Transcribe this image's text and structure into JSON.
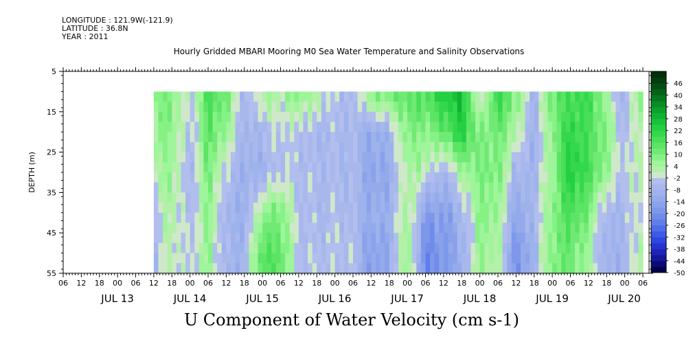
{
  "header": {
    "longitude": "LONGITUDE : 121.9W(-121.9)",
    "latitude": "LATITUDE : 36.8N",
    "year": "YEAR : 2011"
  },
  "title": "Hourly Gridded MBARI Mooring M0 Sea Water Temperature and Salinity Observations",
  "variable_title": "U Component of Water Velocity (cm s-1)",
  "chart_data": {
    "type": "heatmap",
    "ylabel": "DEPTH (m)",
    "y_ticks": [
      5,
      15,
      25,
      35,
      45,
      55
    ],
    "ylim": [
      55,
      5
    ],
    "y_direction": "depth increases downward",
    "x_hour_ticks": [
      "06",
      "12",
      "18",
      "00",
      "06",
      "12",
      "18",
      "00",
      "06",
      "12",
      "18",
      "00",
      "06",
      "12",
      "18",
      "00",
      "06",
      "12",
      "18",
      "00",
      "06",
      "12",
      "18",
      "00",
      "06",
      "12",
      "18",
      "00",
      "06",
      "12",
      "18",
      "00",
      "06"
    ],
    "x_date_labels": [
      {
        "label": "JUL 13",
        "hours_after_jul13_00": 0
      },
      {
        "label": "JUL 14",
        "hours_after_jul13_00": 24
      },
      {
        "label": "JUL 15",
        "hours_after_jul13_00": 48
      },
      {
        "label": "JUL 16",
        "hours_after_jul13_00": 72
      },
      {
        "label": "JUL 17",
        "hours_after_jul13_00": 96
      },
      {
        "label": "JUL 18",
        "hours_after_jul13_00": 120
      },
      {
        "label": "JUL 19",
        "hours_after_jul13_00": 144
      },
      {
        "label": "JUL 20",
        "hours_after_jul13_00": 168
      }
    ],
    "colorbar": {
      "labels": [
        46,
        40,
        34,
        28,
        22,
        16,
        10,
        4,
        -2,
        -8,
        -14,
        -20,
        -26,
        -32,
        -38,
        -44,
        -50
      ],
      "min": -50,
      "max": 52,
      "step": 3,
      "colors_low_to_high": [
        "#00004a",
        "#0a0a78",
        "#15169a",
        "#1f24b8",
        "#2635cf",
        "#2f47e0",
        "#3d5ae6",
        "#4e6de9",
        "#5f7eea",
        "#6f8cea",
        "#7d98ea",
        "#89a2eb",
        "#94aaeb",
        "#9eb2ec",
        "#a8b8ed",
        "#b1beee",
        "#cfe8c9",
        "#b3f0a8",
        "#9ef59a",
        "#86f286",
        "#70ea74",
        "#5ce465",
        "#48de58",
        "#34d84c",
        "#24cf42",
        "#18c23a",
        "#10b232",
        "#0ca02c",
        "#088c26",
        "#06781f",
        "#046318",
        "#034f12",
        "#023e0d",
        "#022e09"
      ]
    },
    "data_extent": {
      "depth_top": 10,
      "depth_bottom": 55
    },
    "time_columns_u_cm_s": {
      "description": "approximate U velocity profile at depths [10,20,30,40,50] m, sampled every 6 hours",
      "samples": [
        {
          "time": "JUL 13 12",
          "u": [
            8,
            6,
            2,
            -3,
            -6
          ]
        },
        {
          "time": "JUL 13 18",
          "u": [
            10,
            8,
            6,
            4,
            2
          ]
        },
        {
          "time": "JUL 14 00",
          "u": [
            -4,
            -6,
            -8,
            -6,
            -4
          ]
        },
        {
          "time": "JUL 14 06",
          "u": [
            18,
            14,
            10,
            8,
            6
          ]
        },
        {
          "time": "JUL 14 12",
          "u": [
            12,
            6,
            -4,
            -8,
            -8
          ]
        },
        {
          "time": "JUL 14 18",
          "u": [
            -8,
            -8,
            -10,
            -10,
            -8
          ]
        },
        {
          "time": "JUL 15 00",
          "u": [
            4,
            -6,
            -8,
            6,
            16
          ]
        },
        {
          "time": "JUL 15 06",
          "u": [
            2,
            -2,
            -4,
            10,
            14
          ]
        },
        {
          "time": "JUL 15 12",
          "u": [
            10,
            -4,
            -4,
            -4,
            -4
          ]
        },
        {
          "time": "JUL 15 18",
          "u": [
            4,
            -6,
            -6,
            -6,
            -4
          ]
        },
        {
          "time": "JUL 16 00",
          "u": [
            -4,
            -6,
            -6,
            -4,
            -4
          ]
        },
        {
          "time": "JUL 16 06",
          "u": [
            -6,
            -6,
            -6,
            -6,
            -4
          ]
        },
        {
          "time": "JUL 16 12",
          "u": [
            10,
            -12,
            -14,
            -12,
            -16
          ]
        },
        {
          "time": "JUL 16 18",
          "u": [
            12,
            -8,
            -12,
            -10,
            -12
          ]
        },
        {
          "time": "JUL 17 00",
          "u": [
            14,
            10,
            4,
            6,
            8
          ]
        },
        {
          "time": "JUL 17 06",
          "u": [
            16,
            8,
            2,
            -16,
            -22
          ]
        },
        {
          "time": "JUL 17 12",
          "u": [
            26,
            12,
            -8,
            -16,
            -18
          ]
        },
        {
          "time": "JUL 17 18",
          "u": [
            28,
            24,
            4,
            -8,
            -10
          ]
        },
        {
          "time": "JUL 18 00",
          "u": [
            -6,
            8,
            10,
            8,
            6
          ]
        },
        {
          "time": "JUL 18 06",
          "u": [
            22,
            12,
            10,
            6,
            4
          ]
        },
        {
          "time": "JUL 18 12",
          "u": [
            10,
            4,
            -8,
            -14,
            -20
          ]
        },
        {
          "time": "JUL 18 18",
          "u": [
            -8,
            -10,
            -8,
            -6,
            -8
          ]
        },
        {
          "time": "JUL 19 00",
          "u": [
            12,
            8,
            6,
            8,
            10
          ]
        },
        {
          "time": "JUL 19 06",
          "u": [
            18,
            22,
            24,
            18,
            12
          ]
        },
        {
          "time": "JUL 19 12",
          "u": [
            20,
            16,
            18,
            10,
            4
          ]
        },
        {
          "time": "JUL 19 18",
          "u": [
            4,
            8,
            6,
            -8,
            -10
          ]
        },
        {
          "time": "JUL 20 00",
          "u": [
            -8,
            -6,
            -4,
            -6,
            -8
          ]
        },
        {
          "time": "JUL 20 06",
          "u": [
            10,
            6,
            4,
            2,
            6
          ]
        }
      ]
    }
  }
}
